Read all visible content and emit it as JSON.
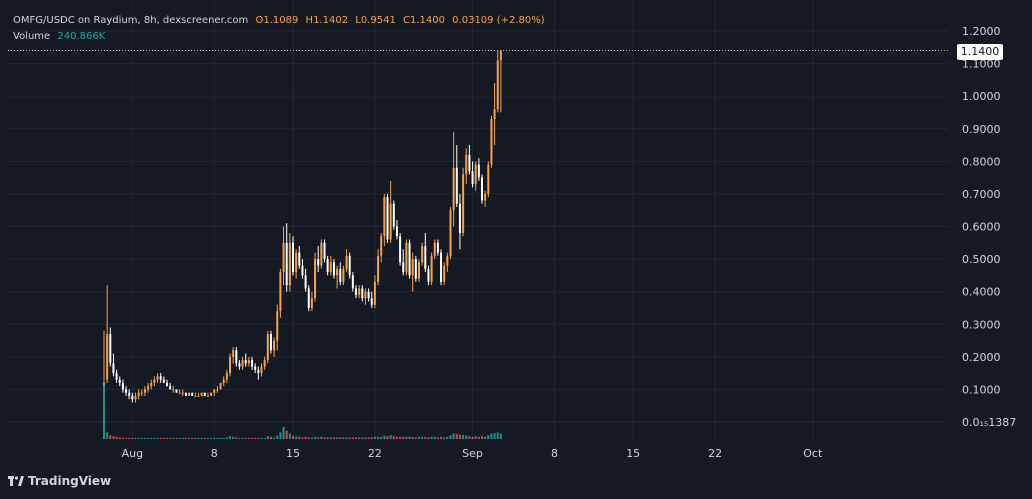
{
  "legend": {
    "title": "OMFG/USDC on Raydium, 8h, dexscreener.com",
    "open": "O1.1089",
    "high": "H1.1402",
    "low": "L0.9541",
    "close": "C1.1400",
    "change": "0.03109 (+2.80%)",
    "volume_label": "Volume",
    "volume_value": "240.866K"
  },
  "last_price_label": "1.1400",
  "branding": "TradingView",
  "colors": {
    "background": "#151924",
    "up": "#f7a24a",
    "down": "#ffffff",
    "vol_up": "#26a69a",
    "vol_down": "#ef5350",
    "grid": "#222631",
    "axis_text": "#d1d4dc"
  },
  "chart_data": {
    "type": "candlestick",
    "title": "OMFG/USDC on Raydium, 8h, dexscreener.com",
    "ylim": [
      0.0,
      1.2
    ],
    "y_ticks": [
      "1.2000",
      "1.1000",
      "1.0000",
      "0.9000",
      "0.8000",
      "0.7000",
      "0.6000",
      "0.5000",
      "0.4000",
      "0.3000",
      "0.2000",
      "0.1000",
      "0.0₁₅1387"
    ],
    "y_tick_values": [
      1.2,
      1.1,
      1.0,
      0.9,
      0.8,
      0.7,
      0.6,
      0.5,
      0.4,
      0.3,
      0.2,
      0.1,
      0.0
    ],
    "x_ticks": [
      "Aug",
      "8",
      "15",
      "22",
      "Sep",
      "8",
      "15",
      "22",
      "Oct"
    ],
    "x_tick_candle_index": [
      9,
      35,
      60,
      86,
      117,
      143,
      168,
      194,
      225
    ],
    "candles": [
      [
        0.12,
        0.28,
        0.11,
        0.12
      ],
      [
        0.13,
        0.42,
        0.12,
        0.27
      ],
      [
        0.27,
        0.29,
        0.17,
        0.18
      ],
      [
        0.18,
        0.21,
        0.14,
        0.15
      ],
      [
        0.15,
        0.16,
        0.12,
        0.13
      ],
      [
        0.13,
        0.14,
        0.11,
        0.12
      ],
      [
        0.12,
        0.13,
        0.09,
        0.1
      ],
      [
        0.1,
        0.11,
        0.08,
        0.09
      ],
      [
        0.09,
        0.1,
        0.07,
        0.08
      ],
      [
        0.08,
        0.09,
        0.06,
        0.07
      ],
      [
        0.07,
        0.09,
        0.06,
        0.08
      ],
      [
        0.08,
        0.1,
        0.07,
        0.09
      ],
      [
        0.09,
        0.1,
        0.08,
        0.09
      ],
      [
        0.09,
        0.11,
        0.08,
        0.1
      ],
      [
        0.1,
        0.12,
        0.09,
        0.11
      ],
      [
        0.11,
        0.13,
        0.1,
        0.12
      ],
      [
        0.12,
        0.14,
        0.11,
        0.13
      ],
      [
        0.13,
        0.15,
        0.12,
        0.14
      ],
      [
        0.14,
        0.15,
        0.12,
        0.13
      ],
      [
        0.13,
        0.14,
        0.12,
        0.12
      ],
      [
        0.12,
        0.13,
        0.11,
        0.11
      ],
      [
        0.11,
        0.12,
        0.1,
        0.1
      ],
      [
        0.1,
        0.11,
        0.09,
        0.1
      ],
      [
        0.1,
        0.1,
        0.09,
        0.09
      ],
      [
        0.09,
        0.1,
        0.09,
        0.09
      ],
      [
        0.09,
        0.1,
        0.08,
        0.09
      ],
      [
        0.09,
        0.09,
        0.08,
        0.08
      ],
      [
        0.08,
        0.09,
        0.08,
        0.09
      ],
      [
        0.09,
        0.09,
        0.08,
        0.08
      ],
      [
        0.08,
        0.09,
        0.08,
        0.08
      ],
      [
        0.08,
        0.09,
        0.08,
        0.08
      ],
      [
        0.08,
        0.09,
        0.08,
        0.09
      ],
      [
        0.09,
        0.09,
        0.08,
        0.08
      ],
      [
        0.08,
        0.09,
        0.08,
        0.08
      ],
      [
        0.08,
        0.09,
        0.08,
        0.09
      ],
      [
        0.09,
        0.1,
        0.08,
        0.1
      ],
      [
        0.1,
        0.11,
        0.09,
        0.1
      ],
      [
        0.1,
        0.12,
        0.1,
        0.12
      ],
      [
        0.12,
        0.14,
        0.11,
        0.13
      ],
      [
        0.13,
        0.16,
        0.12,
        0.15
      ],
      [
        0.15,
        0.21,
        0.14,
        0.2
      ],
      [
        0.2,
        0.23,
        0.18,
        0.22
      ],
      [
        0.22,
        0.23,
        0.17,
        0.18
      ],
      [
        0.18,
        0.19,
        0.16,
        0.17
      ],
      [
        0.17,
        0.2,
        0.16,
        0.19
      ],
      [
        0.19,
        0.21,
        0.17,
        0.18
      ],
      [
        0.18,
        0.2,
        0.17,
        0.19
      ],
      [
        0.19,
        0.2,
        0.16,
        0.17
      ],
      [
        0.17,
        0.18,
        0.15,
        0.16
      ],
      [
        0.16,
        0.17,
        0.13,
        0.15
      ],
      [
        0.15,
        0.18,
        0.14,
        0.17
      ],
      [
        0.17,
        0.2,
        0.16,
        0.19
      ],
      [
        0.19,
        0.28,
        0.18,
        0.27
      ],
      [
        0.27,
        0.28,
        0.21,
        0.22
      ],
      [
        0.22,
        0.26,
        0.2,
        0.25
      ],
      [
        0.25,
        0.36,
        0.22,
        0.34
      ],
      [
        0.34,
        0.47,
        0.32,
        0.46
      ],
      [
        0.46,
        0.6,
        0.42,
        0.55
      ],
      [
        0.55,
        0.61,
        0.4,
        0.42
      ],
      [
        0.42,
        0.58,
        0.4,
        0.55
      ],
      [
        0.55,
        0.57,
        0.45,
        0.46
      ],
      [
        0.46,
        0.53,
        0.44,
        0.52
      ],
      [
        0.52,
        0.54,
        0.47,
        0.48
      ],
      [
        0.48,
        0.5,
        0.44,
        0.45
      ],
      [
        0.45,
        0.47,
        0.4,
        0.41
      ],
      [
        0.41,
        0.42,
        0.34,
        0.35
      ],
      [
        0.35,
        0.4,
        0.34,
        0.38
      ],
      [
        0.38,
        0.52,
        0.37,
        0.5
      ],
      [
        0.5,
        0.54,
        0.46,
        0.48
      ],
      [
        0.48,
        0.56,
        0.47,
        0.55
      ],
      [
        0.55,
        0.56,
        0.49,
        0.5
      ],
      [
        0.5,
        0.51,
        0.45,
        0.46
      ],
      [
        0.46,
        0.51,
        0.45,
        0.49
      ],
      [
        0.49,
        0.5,
        0.44,
        0.45
      ],
      [
        0.45,
        0.48,
        0.41,
        0.47
      ],
      [
        0.47,
        0.49,
        0.42,
        0.43
      ],
      [
        0.43,
        0.48,
        0.42,
        0.47
      ],
      [
        0.47,
        0.53,
        0.46,
        0.51
      ],
      [
        0.51,
        0.52,
        0.44,
        0.45
      ],
      [
        0.45,
        0.46,
        0.4,
        0.41
      ],
      [
        0.41,
        0.42,
        0.38,
        0.39
      ],
      [
        0.39,
        0.42,
        0.38,
        0.41
      ],
      [
        0.41,
        0.42,
        0.37,
        0.38
      ],
      [
        0.38,
        0.41,
        0.36,
        0.4
      ],
      [
        0.4,
        0.41,
        0.37,
        0.38
      ],
      [
        0.38,
        0.4,
        0.35,
        0.36
      ],
      [
        0.36,
        0.45,
        0.35,
        0.43
      ],
      [
        0.43,
        0.53,
        0.42,
        0.51
      ],
      [
        0.51,
        0.58,
        0.49,
        0.57
      ],
      [
        0.57,
        0.7,
        0.54,
        0.69
      ],
      [
        0.69,
        0.7,
        0.55,
        0.56
      ],
      [
        0.56,
        0.74,
        0.55,
        0.67
      ],
      [
        0.67,
        0.68,
        0.59,
        0.6
      ],
      [
        0.6,
        0.62,
        0.56,
        0.57
      ],
      [
        0.57,
        0.58,
        0.48,
        0.49
      ],
      [
        0.49,
        0.53,
        0.45,
        0.46
      ],
      [
        0.46,
        0.56,
        0.45,
        0.55
      ],
      [
        0.55,
        0.56,
        0.44,
        0.45
      ],
      [
        0.45,
        0.52,
        0.4,
        0.5
      ],
      [
        0.5,
        0.51,
        0.43,
        0.44
      ],
      [
        0.44,
        0.5,
        0.43,
        0.49
      ],
      [
        0.49,
        0.55,
        0.48,
        0.54
      ],
      [
        0.54,
        0.58,
        0.46,
        0.47
      ],
      [
        0.47,
        0.48,
        0.42,
        0.43
      ],
      [
        0.43,
        0.52,
        0.42,
        0.51
      ],
      [
        0.51,
        0.56,
        0.5,
        0.55
      ],
      [
        0.55,
        0.56,
        0.51,
        0.52
      ],
      [
        0.52,
        0.53,
        0.42,
        0.43
      ],
      [
        0.43,
        0.49,
        0.42,
        0.48
      ],
      [
        0.48,
        0.52,
        0.46,
        0.51
      ],
      [
        0.51,
        0.66,
        0.5,
        0.65
      ],
      [
        0.65,
        0.89,
        0.6,
        0.78
      ],
      [
        0.78,
        0.85,
        0.66,
        0.67
      ],
      [
        0.67,
        0.7,
        0.53,
        0.58
      ],
      [
        0.58,
        0.78,
        0.57,
        0.76
      ],
      [
        0.76,
        0.84,
        0.73,
        0.82
      ],
      [
        0.82,
        0.85,
        0.76,
        0.77
      ],
      [
        0.77,
        0.8,
        0.72,
        0.73
      ],
      [
        0.73,
        0.8,
        0.71,
        0.79
      ],
      [
        0.79,
        0.81,
        0.74,
        0.75
      ],
      [
        0.75,
        0.76,
        0.67,
        0.68
      ],
      [
        0.68,
        0.71,
        0.66,
        0.7
      ],
      [
        0.7,
        0.8,
        0.69,
        0.79
      ],
      [
        0.79,
        0.94,
        0.78,
        0.93
      ],
      [
        0.93,
        1.04,
        0.85,
        0.96
      ],
      [
        0.96,
        1.14,
        0.95,
        1.11
      ],
      [
        1.11,
        1.14,
        0.95,
        1.14
      ]
    ],
    "volumes": [
      1.0,
      0.12,
      0.07,
      0.05,
      0.04,
      0.03,
      0.02,
      0.02,
      0.02,
      0.02,
      0.02,
      0.02,
      0.02,
      0.02,
      0.02,
      0.02,
      0.02,
      0.02,
      0.02,
      0.02,
      0.02,
      0.02,
      0.02,
      0.02,
      0.02,
      0.02,
      0.02,
      0.02,
      0.02,
      0.02,
      0.02,
      0.02,
      0.02,
      0.02,
      0.02,
      0.02,
      0.02,
      0.02,
      0.02,
      0.03,
      0.05,
      0.04,
      0.03,
      0.02,
      0.02,
      0.02,
      0.02,
      0.02,
      0.02,
      0.02,
      0.02,
      0.02,
      0.05,
      0.04,
      0.03,
      0.06,
      0.12,
      0.22,
      0.15,
      0.1,
      0.06,
      0.05,
      0.04,
      0.03,
      0.04,
      0.03,
      0.03,
      0.04,
      0.03,
      0.04,
      0.03,
      0.03,
      0.03,
      0.03,
      0.03,
      0.03,
      0.03,
      0.03,
      0.03,
      0.03,
      0.03,
      0.03,
      0.03,
      0.03,
      0.03,
      0.03,
      0.04,
      0.04,
      0.04,
      0.06,
      0.05,
      0.07,
      0.05,
      0.04,
      0.04,
      0.04,
      0.04,
      0.04,
      0.04,
      0.03,
      0.04,
      0.04,
      0.04,
      0.03,
      0.04,
      0.04,
      0.03,
      0.04,
      0.03,
      0.04,
      0.07,
      0.1,
      0.09,
      0.08,
      0.07,
      0.06,
      0.05,
      0.04,
      0.05,
      0.04,
      0.05,
      0.04,
      0.07,
      0.1,
      0.11,
      0.12,
      0.1
    ]
  }
}
